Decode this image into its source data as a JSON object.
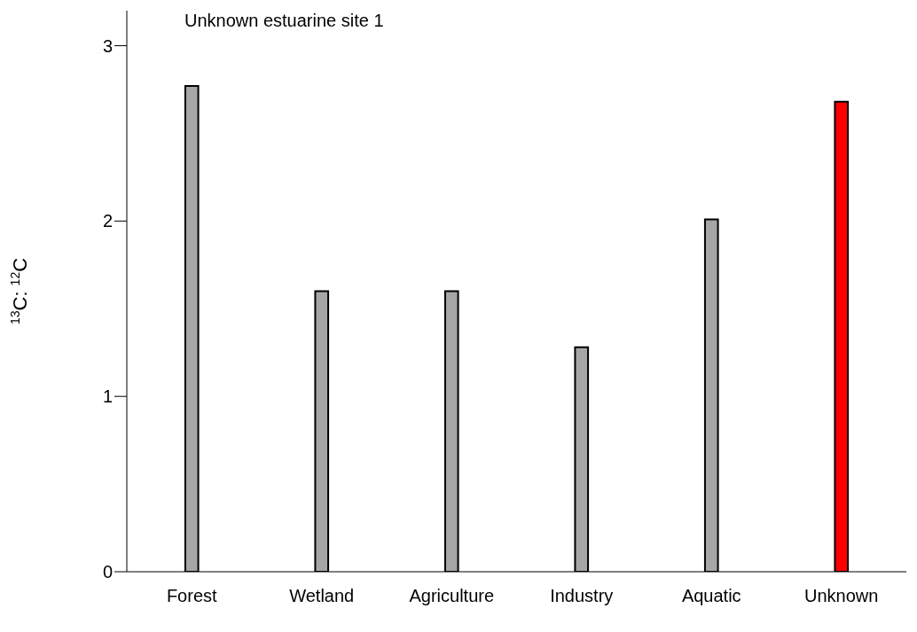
{
  "chart_data": {
    "type": "bar",
    "title": "Unknown estuarine site 1",
    "ylabel": "$^{13}$C: $^{12}$C",
    "categories": [
      "Forest",
      "Wetland",
      "Agriculture",
      "Industry",
      "Aquatic",
      "Unknown"
    ],
    "values": [
      2.77,
      1.6,
      1.6,
      1.28,
      2.01,
      2.68
    ],
    "colors": [
      "#a6a6a6",
      "#a6a6a6",
      "#a6a6a6",
      "#a6a6a6",
      "#a6a6a6",
      "#ff0000"
    ],
    "ylim": [
      0,
      3.2
    ],
    "yticks": [
      0,
      1,
      2,
      3
    ],
    "grid": false,
    "legend": false
  }
}
